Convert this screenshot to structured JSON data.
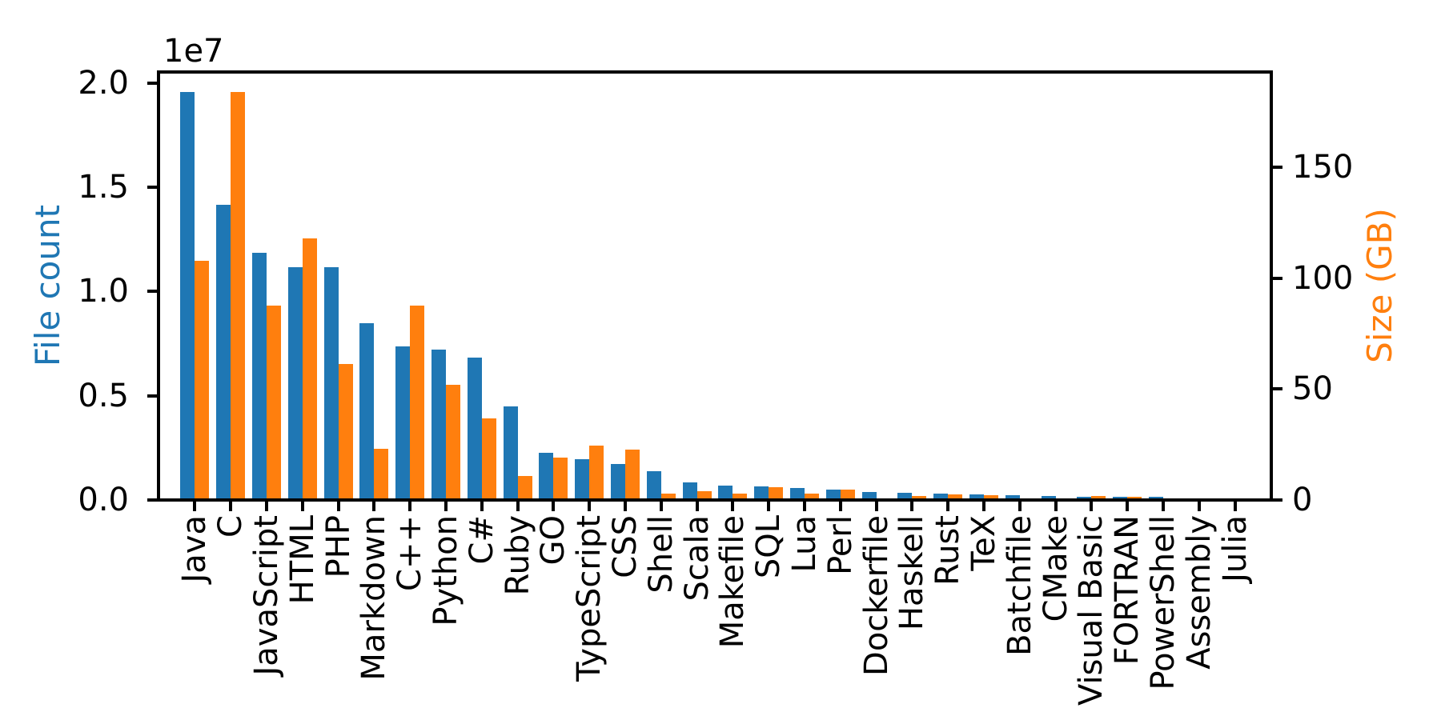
{
  "figure": {
    "background": "#ffffff"
  },
  "chart_data": {
    "type": "bar",
    "title": "",
    "grid": false,
    "legend": null,
    "spine_color": "#000000",
    "tick_color": "#000000",
    "categories": [
      "Java",
      "C",
      "JavaScript",
      "HTML",
      "PHP",
      "Markdown",
      "C++",
      "Python",
      "C#",
      "Ruby",
      "GO",
      "TypeScript",
      "CSS",
      "Shell",
      "Scala",
      "Makefile",
      "SQL",
      "Lua",
      "Perl",
      "Dockerfile",
      "Haskell",
      "Rust",
      "TeX",
      "Batchfile",
      "CMake",
      "Visual Basic",
      "FORTRAN",
      "PowerShell",
      "Assembly",
      "Julia"
    ],
    "series": [
      {
        "name": "File count",
        "axis": "left",
        "color": "#1f77b4",
        "values": [
          19548190,
          14143113,
          11839883,
          11178557,
          11177610,
          8464626,
          7380520,
          7226626,
          6811652,
          4473331,
          2265436,
          1940406,
          1734406,
          1385648,
          835755,
          679430,
          656671,
          578554,
          497949,
          366505,
          340623,
          322431,
          251015,
          236945,
          175282,
          155652,
          142038,
          136846,
          82905,
          58317
        ]
      },
      {
        "name": "Size (GB)",
        "axis": "right",
        "color": "#ff7f0e",
        "values": [
          107.7,
          183.83,
          87.82,
          118.12,
          61.41,
          23.09,
          87.73,
          52.03,
          36.83,
          10.95,
          19.28,
          24.59,
          22.67,
          3.01,
          3.87,
          2.92,
          5.67,
          2.81,
          4.7,
          0.71,
          1.85,
          2.68,
          2.15,
          0.7,
          0.54,
          1.91,
          1.62,
          0.69,
          0.78,
          0.29
        ]
      }
    ],
    "axes": {
      "left": {
        "label": "File count",
        "color": "#1f77b4",
        "offset_text": "1e7",
        "tick_labels": [
          "0.0",
          "0.5",
          "1.0",
          "1.5",
          "2.0"
        ],
        "tick_values": [
          0,
          5000000,
          10000000,
          15000000,
          20000000
        ],
        "range": [
          0,
          20525600
        ]
      },
      "right": {
        "label": "Size (GB)",
        "color": "#ff7f0e",
        "tick_labels": [
          "0",
          "50",
          "100",
          "150"
        ],
        "tick_values": [
          0,
          50,
          100,
          150
        ],
        "range": [
          0,
          193.02
        ]
      },
      "x": {
        "tick_label_rotation_deg": 90
      }
    }
  }
}
